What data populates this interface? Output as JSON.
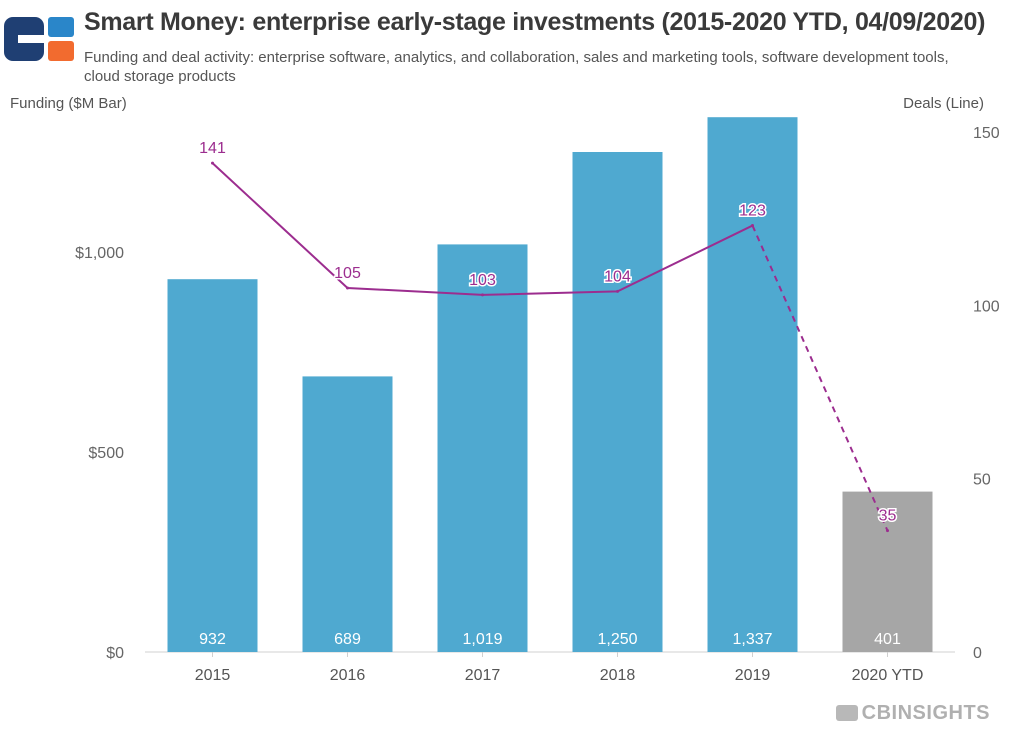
{
  "header": {
    "title": "Smart Money: enterprise early-stage investments (2015-2020 YTD, 04/09/2020)",
    "subtitle": "Funding and deal activity: enterprise software, analytics, and collaboration, sales and marketing tools, software development tools, cloud storage products"
  },
  "branding": {
    "watermark": "CBINSIGHTS"
  },
  "chart_data": {
    "type": "bar",
    "categories": [
      "2015",
      "2016",
      "2017",
      "2018",
      "2019",
      "2020 YTD"
    ],
    "series": [
      {
        "type": "bar",
        "axis": "left",
        "values": [
          932,
          689,
          1019,
          1250,
          1337,
          401
        ],
        "labels": [
          "932",
          "689",
          "1,019",
          "1,250",
          "1,337",
          "401"
        ],
        "colors": [
          "#4fa9d0",
          "#4fa9d0",
          "#4fa9d0",
          "#4fa9d0",
          "#4fa9d0",
          "#a6a6a6"
        ]
      },
      {
        "type": "line",
        "axis": "right",
        "values": [
          141,
          105,
          103,
          104,
          123,
          35
        ],
        "labels": [
          "141",
          "105",
          "103",
          "104",
          "123",
          "35"
        ],
        "color": "#9c2d8f",
        "dashed_from_index": 4
      }
    ],
    "ylabel": "Funding ($M Bar)",
    "y2label": "Deals (Line)",
    "ylim": [
      0,
      1300
    ],
    "y2lim": [
      0,
      150
    ],
    "yticks": [
      0,
      500,
      1000
    ],
    "ytick_labels": [
      "$0",
      "$500",
      "$1,000"
    ],
    "y2ticks": [
      0,
      50,
      100,
      150
    ],
    "y2tick_labels": [
      "0",
      "50",
      "100",
      "150"
    ],
    "grid": false
  }
}
